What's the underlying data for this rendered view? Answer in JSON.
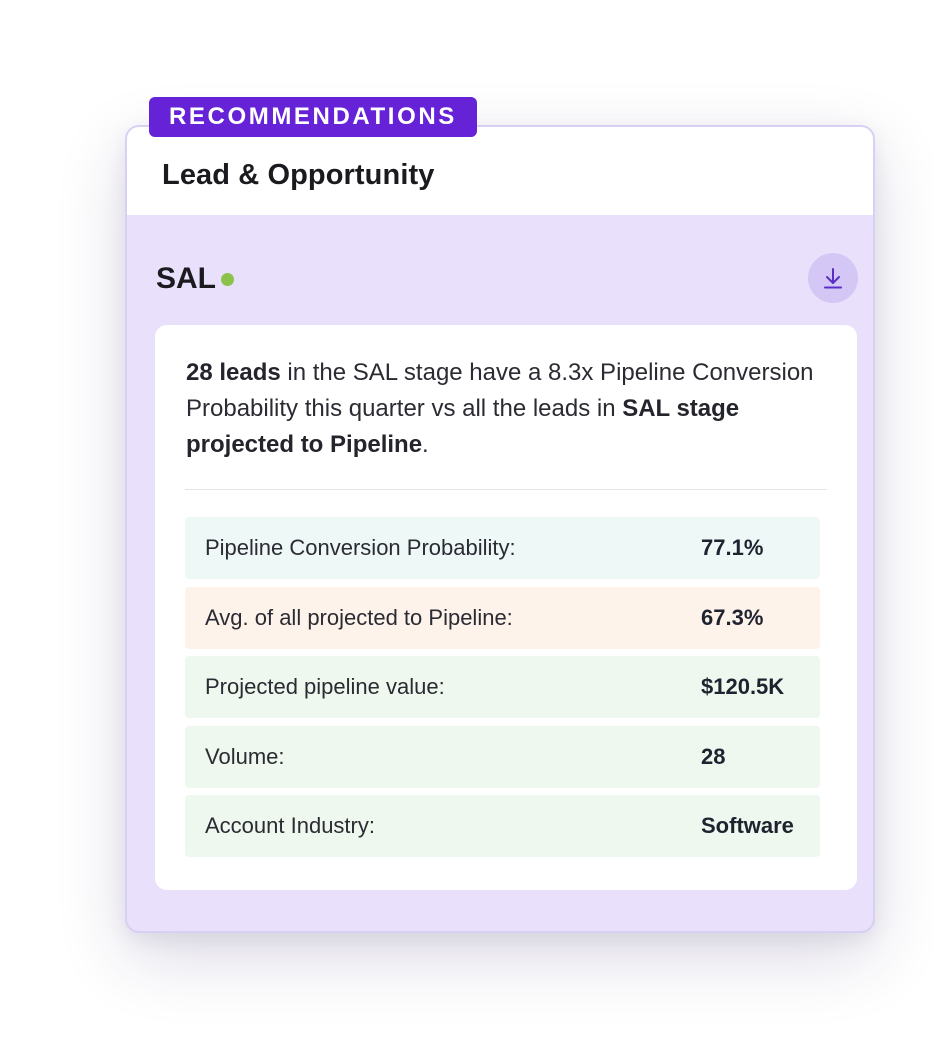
{
  "badge": "RECOMMENDATIONS",
  "card": {
    "title": "Lead & Opportunity"
  },
  "section": {
    "title": "SAL",
    "status_color": "#8bc34a",
    "download_icon": "download-icon"
  },
  "description": {
    "lead_count": "28 leads",
    "middle_text": " in the SAL stage have a 8.3x Pipeline Conversion Probability this quarter vs all the leads in ",
    "emphasis": "SAL stage projected to Pipeline",
    "end": "."
  },
  "metrics": [
    {
      "label": "Pipeline Conversion Probability:",
      "value": "77.1%",
      "bg": "#eef8f7"
    },
    {
      "label": "Avg. of all projected to Pipeline:",
      "value": "67.3%",
      "bg": "#fdf3ea"
    },
    {
      "label": "Projected pipeline value:",
      "value": "$120.5K",
      "bg": "#eef8ee"
    },
    {
      "label": "Volume:",
      "value": "28",
      "bg": "#eef8ee"
    },
    {
      "label": "Account Industry:",
      "value": "Software",
      "bg": "#eef8ee"
    }
  ],
  "colors": {
    "accent": "#6522d6",
    "card_bg": "#e9e1fb"
  }
}
